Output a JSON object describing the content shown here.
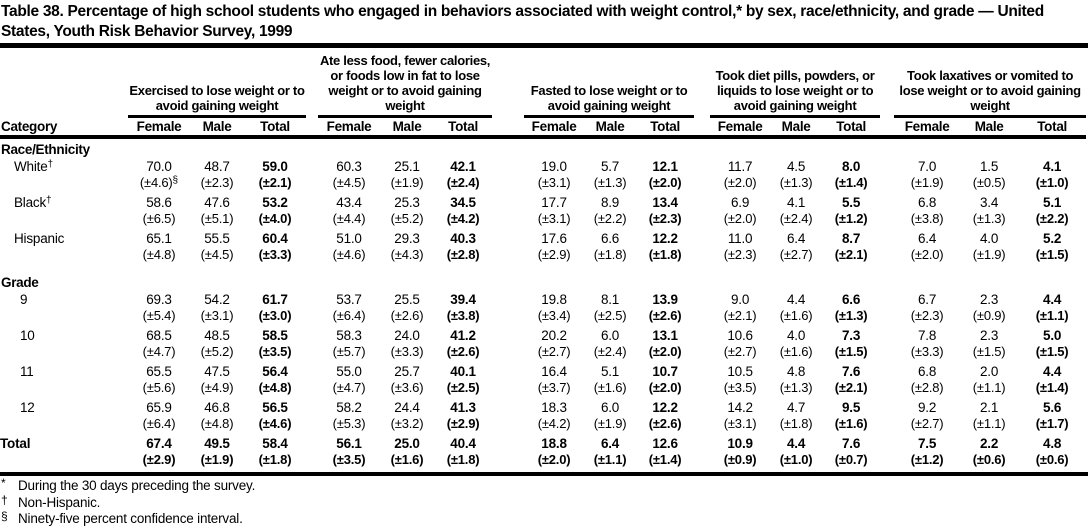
{
  "title": "Table 38. Percentage of high school students who engaged in behaviors associated with weight control,* by sex, race/ethnicity, and grade — United States, Youth Risk Behavior Survey, 1999",
  "table": {
    "category_header": "Category",
    "groups": [
      {
        "label": "Exercised to lose weight or to avoid gaining weight",
        "sub": [
          "Female",
          "Male",
          "Total"
        ]
      },
      {
        "label": "Ate less food, fewer calories, or foods low in fat to lose weight or to avoid gaining weight",
        "sub": [
          "Female",
          "Male",
          "Total"
        ]
      },
      {
        "label": "Fasted to lose weight or to avoid gaining weight",
        "sub": [
          "Female",
          "Male",
          "Total"
        ]
      },
      {
        "label": "Took diet pills, powders, or liquids to lose weight or to avoid gaining weight",
        "sub": [
          "Female",
          "Male",
          "Total"
        ]
      },
      {
        "label": "Took laxatives or vomited to lose weight or to avoid gaining weight",
        "sub": [
          "Female",
          "Male",
          "Total"
        ]
      }
    ],
    "sections": [
      {
        "header": "Race/Ethnicity",
        "rows": [
          {
            "label": "White",
            "label_sup": "†",
            "cells": [
              {
                "v": "70.0",
                "ci": "(±4.6)",
                "ci_sup": "§"
              },
              {
                "v": "48.7",
                "ci": "(±2.3)"
              },
              {
                "v": "59.0",
                "ci": "(±2.1)"
              },
              {
                "v": "60.3",
                "ci": "(±4.5)"
              },
              {
                "v": "25.1",
                "ci": "(±1.9)"
              },
              {
                "v": "42.1",
                "ci": "(±2.4)"
              },
              {
                "v": "19.0",
                "ci": "(±3.1)"
              },
              {
                "v": "5.7",
                "ci": "(±1.3)"
              },
              {
                "v": "12.1",
                "ci": "(±2.0)"
              },
              {
                "v": "11.7",
                "ci": "(±2.0)"
              },
              {
                "v": "4.5",
                "ci": "(±1.3)"
              },
              {
                "v": "8.0",
                "ci": "(±1.4)"
              },
              {
                "v": "7.0",
                "ci": "(±1.9)"
              },
              {
                "v": "1.5",
                "ci": "(±0.5)"
              },
              {
                "v": "4.1",
                "ci": "(±1.0)"
              }
            ]
          },
          {
            "label": "Black",
            "label_sup": "†",
            "cells": [
              {
                "v": "58.6",
                "ci": "(±6.5)"
              },
              {
                "v": "47.6",
                "ci": "(±5.1)"
              },
              {
                "v": "53.2",
                "ci": "(±4.0)"
              },
              {
                "v": "43.4",
                "ci": "(±4.4)"
              },
              {
                "v": "25.3",
                "ci": "(±5.2)"
              },
              {
                "v": "34.5",
                "ci": "(±4.2)"
              },
              {
                "v": "17.7",
                "ci": "(±3.1)"
              },
              {
                "v": "8.9",
                "ci": "(±2.2)"
              },
              {
                "v": "13.4",
                "ci": "(±2.3)"
              },
              {
                "v": "6.9",
                "ci": "(±2.0)"
              },
              {
                "v": "4.1",
                "ci": "(±2.4)"
              },
              {
                "v": "5.5",
                "ci": "(±1.2)"
              },
              {
                "v": "6.8",
                "ci": "(±3.8)"
              },
              {
                "v": "3.4",
                "ci": "(±1.3)"
              },
              {
                "v": "5.1",
                "ci": "(±2.2)"
              }
            ]
          },
          {
            "label": "Hispanic",
            "cells": [
              {
                "v": "65.1",
                "ci": "(±4.8)"
              },
              {
                "v": "55.5",
                "ci": "(±4.5)"
              },
              {
                "v": "60.4",
                "ci": "(±3.3)"
              },
              {
                "v": "51.0",
                "ci": "(±4.6)"
              },
              {
                "v": "29.3",
                "ci": "(±4.3)"
              },
              {
                "v": "40.3",
                "ci": "(±2.8)"
              },
              {
                "v": "17.6",
                "ci": "(±2.9)"
              },
              {
                "v": "6.6",
                "ci": "(±1.8)"
              },
              {
                "v": "12.2",
                "ci": "(±1.8)"
              },
              {
                "v": "11.0",
                "ci": "(±2.3)"
              },
              {
                "v": "6.4",
                "ci": "(±2.7)"
              },
              {
                "v": "8.7",
                "ci": "(±2.1)"
              },
              {
                "v": "6.4",
                "ci": "(±2.0)"
              },
              {
                "v": "4.0",
                "ci": "(±1.9)"
              },
              {
                "v": "5.2",
                "ci": "(±1.5)"
              }
            ]
          }
        ]
      },
      {
        "header": "Grade",
        "rows": [
          {
            "label": "9",
            "cells": [
              {
                "v": "69.3",
                "ci": "(±5.4)"
              },
              {
                "v": "54.2",
                "ci": "(±3.1)"
              },
              {
                "v": "61.7",
                "ci": "(±3.0)"
              },
              {
                "v": "53.7",
                "ci": "(±6.4)"
              },
              {
                "v": "25.5",
                "ci": "(±2.6)"
              },
              {
                "v": "39.4",
                "ci": "(±3.8)"
              },
              {
                "v": "19.8",
                "ci": "(±3.4)"
              },
              {
                "v": "8.1",
                "ci": "(±2.5)"
              },
              {
                "v": "13.9",
                "ci": "(±2.6)"
              },
              {
                "v": "9.0",
                "ci": "(±2.1)"
              },
              {
                "v": "4.4",
                "ci": "(±1.6)"
              },
              {
                "v": "6.6",
                "ci": "(±1.3)"
              },
              {
                "v": "6.7",
                "ci": "(±2.3)"
              },
              {
                "v": "2.3",
                "ci": "(±0.9)"
              },
              {
                "v": "4.4",
                "ci": "(±1.1)"
              }
            ]
          },
          {
            "label": "10",
            "cells": [
              {
                "v": "68.5",
                "ci": "(±4.7)"
              },
              {
                "v": "48.5",
                "ci": "(±5.2)"
              },
              {
                "v": "58.5",
                "ci": "(±3.5)"
              },
              {
                "v": "58.3",
                "ci": "(±5.7)"
              },
              {
                "v": "24.0",
                "ci": "(±3.3)"
              },
              {
                "v": "41.2",
                "ci": "(±2.6)"
              },
              {
                "v": "20.2",
                "ci": "(±2.7)"
              },
              {
                "v": "6.0",
                "ci": "(±2.4)"
              },
              {
                "v": "13.1",
                "ci": "(±2.0)"
              },
              {
                "v": "10.6",
                "ci": "(±2.7)"
              },
              {
                "v": "4.0",
                "ci": "(±1.6)"
              },
              {
                "v": "7.3",
                "ci": "(±1.5)"
              },
              {
                "v": "7.8",
                "ci": "(±3.3)"
              },
              {
                "v": "2.3",
                "ci": "(±1.5)"
              },
              {
                "v": "5.0",
                "ci": "(±1.5)"
              }
            ]
          },
          {
            "label": "11",
            "cells": [
              {
                "v": "65.5",
                "ci": "(±5.6)"
              },
              {
                "v": "47.5",
                "ci": "(±4.9)"
              },
              {
                "v": "56.4",
                "ci": "(±4.8)"
              },
              {
                "v": "55.0",
                "ci": "(±4.7)"
              },
              {
                "v": "25.7",
                "ci": "(±3.6)"
              },
              {
                "v": "40.1",
                "ci": "(±2.5)"
              },
              {
                "v": "16.4",
                "ci": "(±3.7)"
              },
              {
                "v": "5.1",
                "ci": "(±1.6)"
              },
              {
                "v": "10.7",
                "ci": "(±2.0)"
              },
              {
                "v": "10.5",
                "ci": "(±3.5)"
              },
              {
                "v": "4.8",
                "ci": "(±1.3)"
              },
              {
                "v": "7.6",
                "ci": "(±2.1)"
              },
              {
                "v": "6.8",
                "ci": "(±2.8)"
              },
              {
                "v": "2.0",
                "ci": "(±1.1)"
              },
              {
                "v": "4.4",
                "ci": "(±1.4)"
              }
            ]
          },
          {
            "label": "12",
            "cells": [
              {
                "v": "65.9",
                "ci": "(±6.4)"
              },
              {
                "v": "46.8",
                "ci": "(±4.8)"
              },
              {
                "v": "56.5",
                "ci": "(±4.6)"
              },
              {
                "v": "58.2",
                "ci": "(±5.3)"
              },
              {
                "v": "24.4",
                "ci": "(±3.2)"
              },
              {
                "v": "41.3",
                "ci": "(±2.9)"
              },
              {
                "v": "18.3",
                "ci": "(±4.2)"
              },
              {
                "v": "6.0",
                "ci": "(±1.9)"
              },
              {
                "v": "12.2",
                "ci": "(±2.6)"
              },
              {
                "v": "14.2",
                "ci": "(±3.1)"
              },
              {
                "v": "4.7",
                "ci": "(±1.8)"
              },
              {
                "v": "9.5",
                "ci": "(±1.6)"
              },
              {
                "v": "9.2",
                "ci": "(±2.7)"
              },
              {
                "v": "2.1",
                "ci": "(±1.1)"
              },
              {
                "v": "5.6",
                "ci": "(±1.7)"
              }
            ]
          }
        ]
      }
    ],
    "total_row": {
      "label": "Total",
      "cells": [
        {
          "v": "67.4",
          "ci": "(±2.9)"
        },
        {
          "v": "49.5",
          "ci": "(±1.9)"
        },
        {
          "v": "58.4",
          "ci": "(±1.8)"
        },
        {
          "v": "56.1",
          "ci": "(±3.5)"
        },
        {
          "v": "25.0",
          "ci": "(±1.6)"
        },
        {
          "v": "40.4",
          "ci": "(±1.8)"
        },
        {
          "v": "18.8",
          "ci": "(±2.0)"
        },
        {
          "v": "6.4",
          "ci": "(±1.1)"
        },
        {
          "v": "12.6",
          "ci": "(±1.4)"
        },
        {
          "v": "10.9",
          "ci": "(±0.9)"
        },
        {
          "v": "4.4",
          "ci": "(±1.0)"
        },
        {
          "v": "7.6",
          "ci": "(±0.7)"
        },
        {
          "v": "7.5",
          "ci": "(±1.2)"
        },
        {
          "v": "2.2",
          "ci": "(±0.6)"
        },
        {
          "v": "4.8",
          "ci": "(±0.6)"
        }
      ]
    },
    "footnotes": [
      {
        "marker": "*",
        "text": "During the 30 days preceding the survey."
      },
      {
        "marker": "†",
        "text": "Non-Hispanic."
      },
      {
        "marker": "§",
        "text": "Ninety-five percent confidence interval."
      }
    ]
  }
}
